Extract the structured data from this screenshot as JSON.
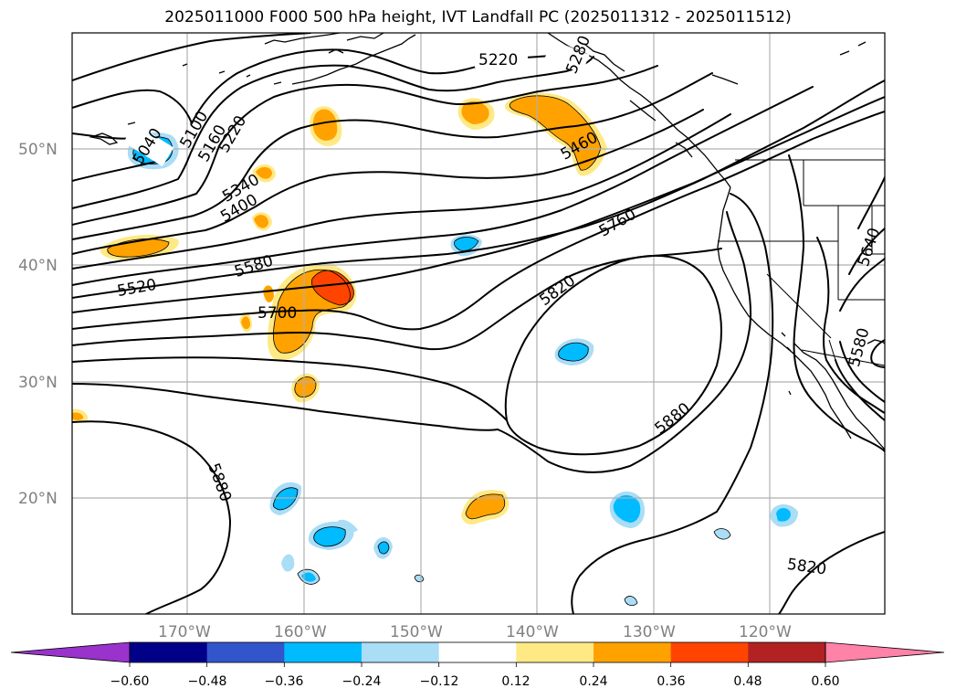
{
  "title": "2025011000 F000 500 hPa height, IVT Landfall PC (2025011312 - 2025011512)",
  "map": {
    "lat_labels": [
      "50°N",
      "40°N",
      "30°N",
      "20°N"
    ],
    "lon_labels": [
      "170°W",
      "160°W",
      "150°W",
      "140°W",
      "130°W",
      "120°W"
    ],
    "contour_labels": [
      "5220",
      "5280",
      "5040",
      "5100",
      "5160",
      "5220",
      "5340",
      "5400",
      "5460",
      "5520",
      "5580",
      "5640",
      "5700",
      "5760",
      "5820",
      "5880",
      "5880",
      "5580",
      "5820"
    ]
  },
  "colorbar": {
    "colors": [
      "#9933cc",
      "#000088",
      "#3355cc",
      "#00bbff",
      "#aaddf6",
      "#ffffff",
      "#ffe985",
      "#ffa200",
      "#ff4400",
      "#b22222",
      "#ff82a8"
    ],
    "tick_labels": [
      "−0.60",
      "−0.48",
      "−0.36",
      "−0.24",
      "−0.12",
      "0.12",
      "0.24",
      "0.36",
      "0.48",
      "0.60"
    ]
  }
}
